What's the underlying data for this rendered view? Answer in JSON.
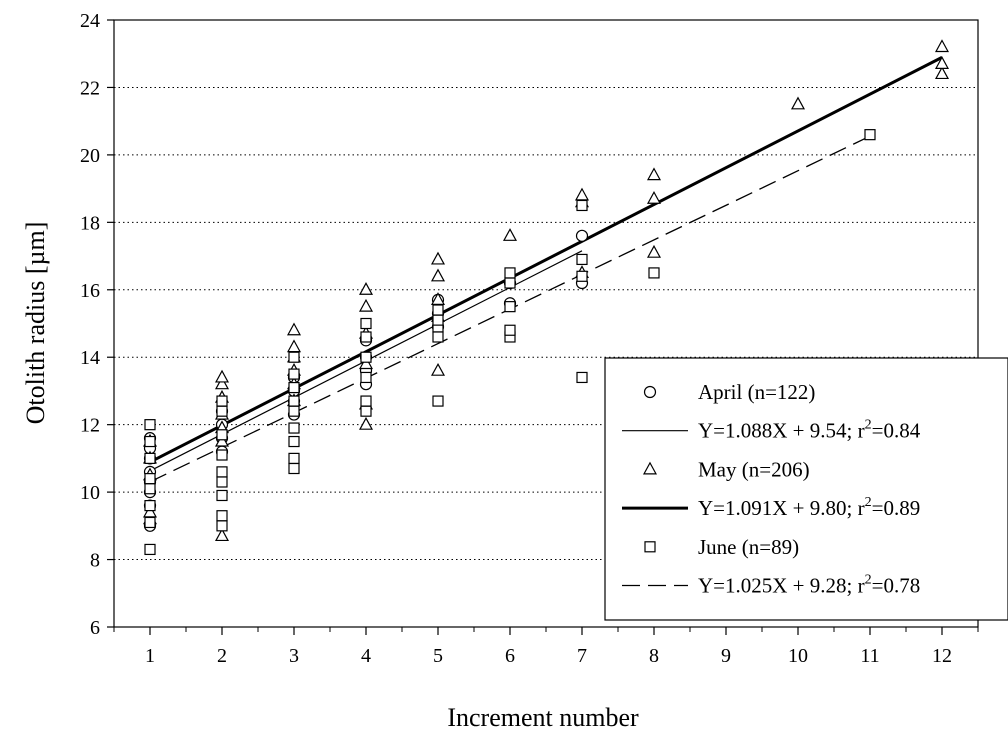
{
  "chart_data": {
    "type": "scatter",
    "xlabel": "Increment number",
    "ylabel": "Otolith radius [µm]",
    "xlim": [
      0.5,
      12.5
    ],
    "ylim": [
      6,
      24
    ],
    "xticks": [
      1,
      2,
      3,
      4,
      5,
      6,
      7,
      8,
      9,
      10,
      11,
      12
    ],
    "yticks": [
      6,
      8,
      10,
      12,
      14,
      16,
      18,
      20,
      22,
      24
    ],
    "grid": "horizontal dotted",
    "legend_position": "bottom-right",
    "series": [
      {
        "name": "April (n=122)",
        "marker": "circle",
        "points": [
          [
            1,
            9.0
          ],
          [
            1,
            9.6
          ],
          [
            1,
            10.0
          ],
          [
            1,
            10.3
          ],
          [
            1,
            10.6
          ],
          [
            1,
            11.0
          ],
          [
            1,
            11.3
          ],
          [
            1,
            11.6
          ],
          [
            2,
            11.2
          ],
          [
            2,
            11.6
          ],
          [
            2,
            12.0
          ],
          [
            2,
            12.4
          ],
          [
            3,
            12.3
          ],
          [
            3,
            12.7
          ],
          [
            3,
            13.0
          ],
          [
            3,
            13.4
          ],
          [
            4,
            13.2
          ],
          [
            4,
            13.6
          ],
          [
            4,
            14.0
          ],
          [
            4,
            14.5
          ],
          [
            5,
            14.9
          ],
          [
            5,
            15.3
          ],
          [
            5,
            15.7
          ],
          [
            6,
            15.6
          ],
          [
            6,
            16.2
          ],
          [
            7,
            16.2
          ],
          [
            7,
            17.6
          ]
        ]
      },
      {
        "name": "May (n=206)",
        "marker": "triangle",
        "points": [
          [
            1,
            9.2
          ],
          [
            1,
            9.4
          ],
          [
            1,
            10.5
          ],
          [
            1,
            11.0
          ],
          [
            1,
            11.5
          ],
          [
            2,
            8.7
          ],
          [
            2,
            11.5
          ],
          [
            2,
            11.9
          ],
          [
            2,
            12.3
          ],
          [
            2,
            12.8
          ],
          [
            2,
            13.2
          ],
          [
            2,
            13.4
          ],
          [
            3,
            12.7
          ],
          [
            3,
            13.2
          ],
          [
            3,
            13.6
          ],
          [
            3,
            14.0
          ],
          [
            3,
            14.3
          ],
          [
            3,
            14.8
          ],
          [
            4,
            12.0
          ],
          [
            4,
            12.6
          ],
          [
            4,
            13.8
          ],
          [
            4,
            14.7
          ],
          [
            4,
            15.5
          ],
          [
            4,
            16.0
          ],
          [
            5,
            13.6
          ],
          [
            5,
            15.2
          ],
          [
            5,
            15.7
          ],
          [
            5,
            16.4
          ],
          [
            5,
            16.9
          ],
          [
            6,
            17.6
          ],
          [
            7,
            16.5
          ],
          [
            7,
            18.6
          ],
          [
            7,
            18.8
          ],
          [
            8,
            17.1
          ],
          [
            8,
            18.7
          ],
          [
            8,
            19.4
          ],
          [
            10,
            21.5
          ],
          [
            12,
            22.4
          ],
          [
            12,
            22.7
          ],
          [
            12,
            23.2
          ]
        ]
      },
      {
        "name": "June (n=89)",
        "marker": "square",
        "points": [
          [
            1,
            8.3
          ],
          [
            1,
            9.1
          ],
          [
            1,
            9.6
          ],
          [
            1,
            10.1
          ],
          [
            1,
            10.4
          ],
          [
            1,
            11.0
          ],
          [
            1,
            11.5
          ],
          [
            1,
            12.0
          ],
          [
            2,
            9.0
          ],
          [
            2,
            9.3
          ],
          [
            2,
            9.9
          ],
          [
            2,
            10.3
          ],
          [
            2,
            10.6
          ],
          [
            2,
            11.1
          ],
          [
            2,
            11.7
          ],
          [
            2,
            12.4
          ],
          [
            2,
            12.7
          ],
          [
            3,
            10.7
          ],
          [
            3,
            11.0
          ],
          [
            3,
            11.5
          ],
          [
            3,
            11.9
          ],
          [
            3,
            12.4
          ],
          [
            3,
            12.7
          ],
          [
            3,
            13.1
          ],
          [
            3,
            13.5
          ],
          [
            3,
            14.0
          ],
          [
            4,
            12.4
          ],
          [
            4,
            12.7
          ],
          [
            4,
            13.4
          ],
          [
            4,
            14.0
          ],
          [
            4,
            14.6
          ],
          [
            4,
            15.0
          ],
          [
            5,
            12.7
          ],
          [
            5,
            14.6
          ],
          [
            5,
            14.9
          ],
          [
            5,
            15.1
          ],
          [
            5,
            15.4
          ],
          [
            6,
            14.6
          ],
          [
            6,
            14.8
          ],
          [
            6,
            15.5
          ],
          [
            6,
            16.2
          ],
          [
            6,
            16.5
          ],
          [
            7,
            13.4
          ],
          [
            7,
            16.4
          ],
          [
            7,
            16.9
          ],
          [
            7,
            18.5
          ],
          [
            8,
            16.5
          ],
          [
            11,
            20.6
          ]
        ]
      }
    ],
    "fits": [
      {
        "name": "Y=1.088X + 9.54; r²=0.84",
        "slope": 1.088,
        "intercept": 9.54,
        "x_range": [
          1,
          7
        ],
        "style": "thin-solid"
      },
      {
        "name": "Y=1.091X + 9.80; r²=0.89",
        "slope": 1.091,
        "intercept": 9.8,
        "x_range": [
          1,
          12
        ],
        "style": "thick-solid"
      },
      {
        "name": "Y=1.025X + 9.28; r²=0.78",
        "slope": 1.025,
        "intercept": 9.28,
        "x_range": [
          1,
          11
        ],
        "style": "dashed"
      }
    ]
  },
  "legend": {
    "items": [
      {
        "kind": "marker",
        "symbol": "circle",
        "label": "April (n=122)"
      },
      {
        "kind": "line",
        "style": "thin-solid",
        "text": "Y=1.088X + 9.54; r",
        "sup": "2",
        "tail": "=0.84"
      },
      {
        "kind": "marker",
        "symbol": "triangle",
        "label": "May (n=206)"
      },
      {
        "kind": "line",
        "style": "thick-solid",
        "text": "Y=1.091X + 9.80; r",
        "sup": "2",
        "tail": "=0.89"
      },
      {
        "kind": "marker",
        "symbol": "square",
        "label": "June (n=89)"
      },
      {
        "kind": "line",
        "style": "dashed",
        "text": "Y=1.025X + 9.28; r",
        "sup": "2",
        "tail": "=0.78"
      }
    ]
  }
}
